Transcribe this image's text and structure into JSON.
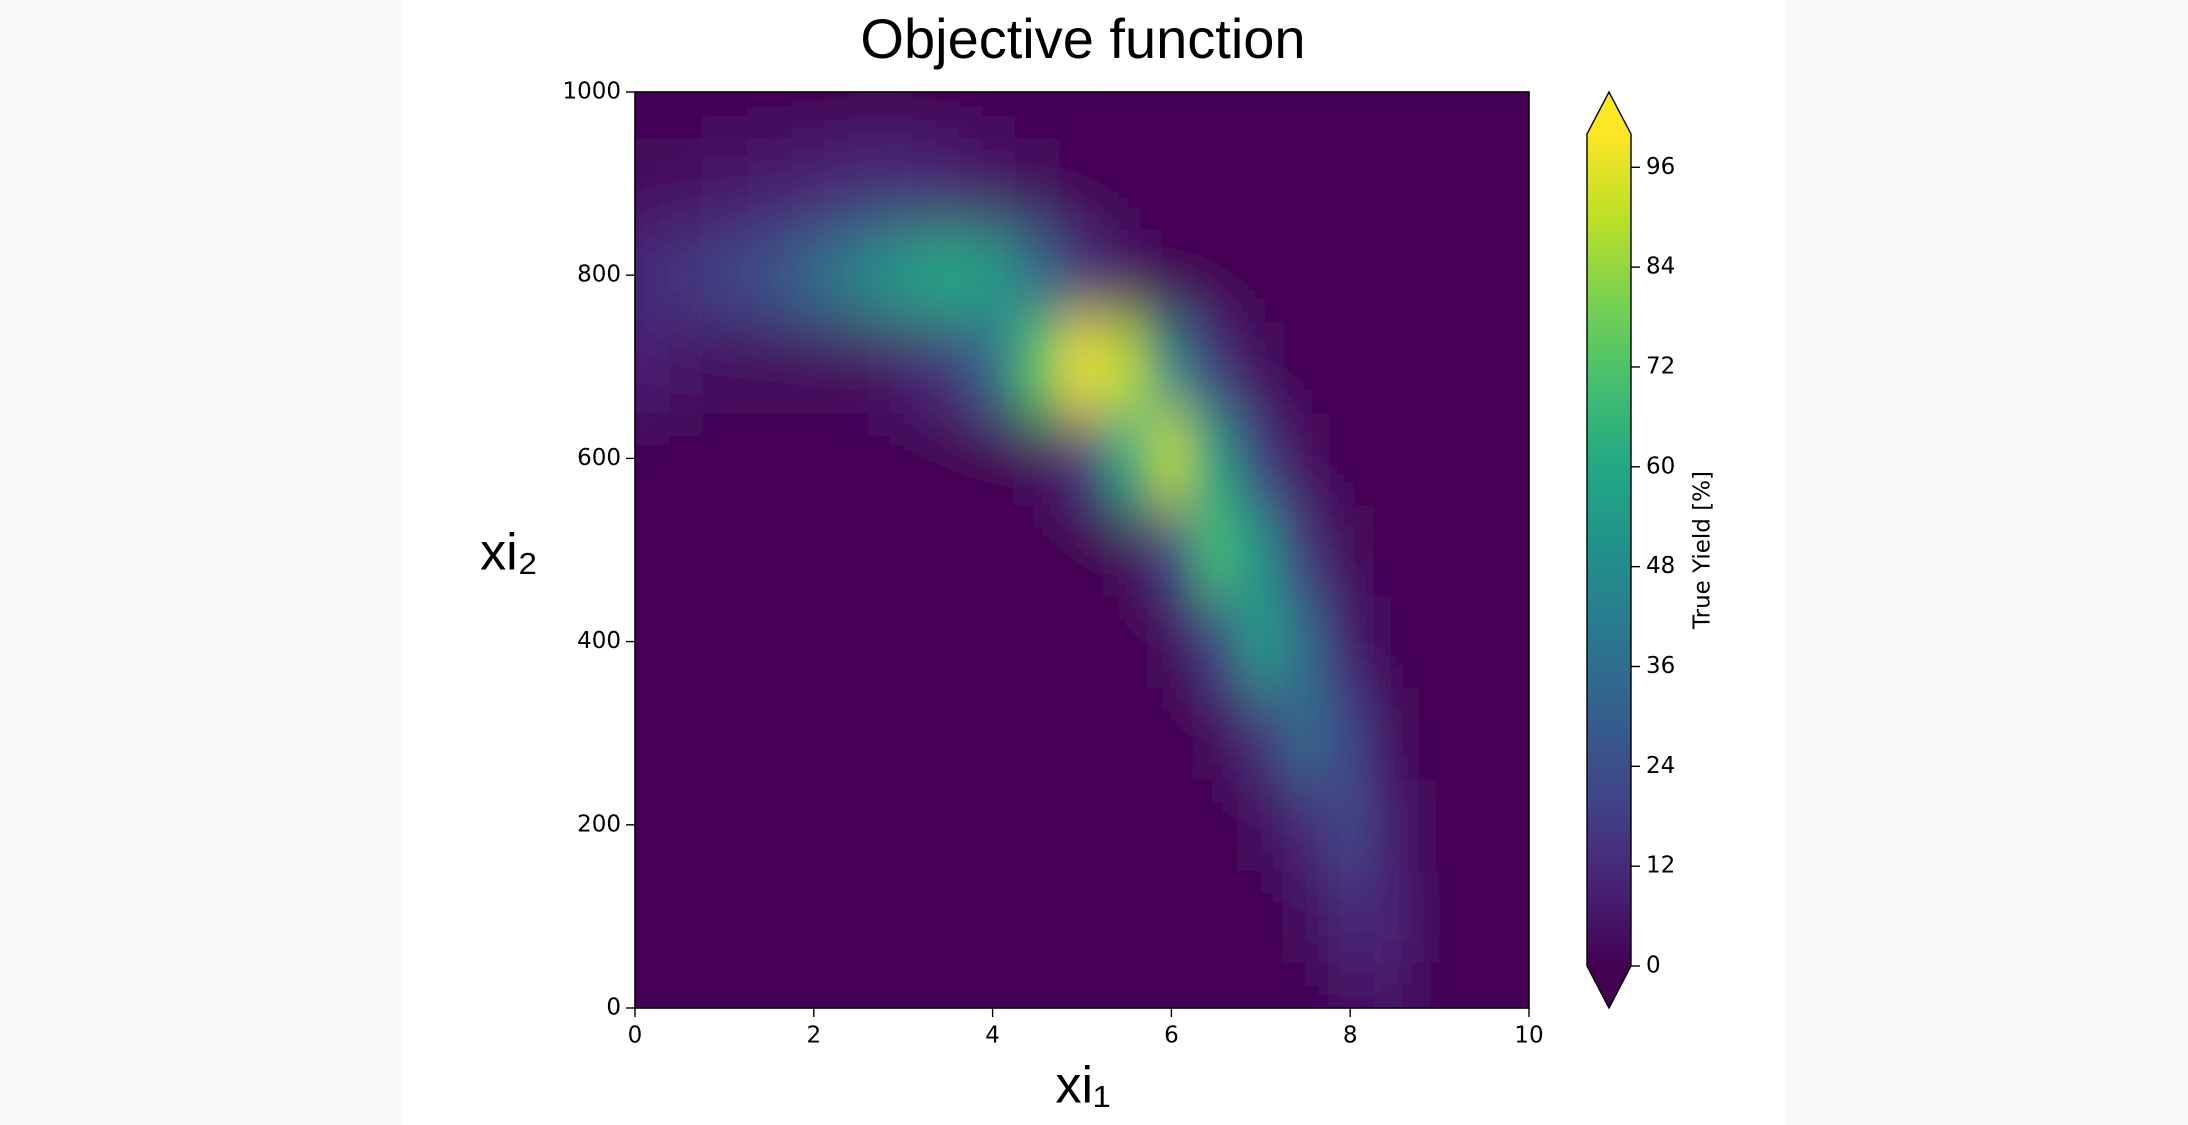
{
  "chart_data": {
    "type": "contourf",
    "title": "Objective function",
    "xlabel": "xi₁",
    "ylabel": "xi₂",
    "x": [
      0,
      0.5,
      1,
      1.5,
      2,
      2.5,
      3,
      3.5,
      4,
      4.5,
      5,
      5.5,
      6,
      6.5,
      7,
      7.5,
      8,
      8.5,
      9,
      9.5,
      10
    ],
    "y": [
      0,
      100,
      200,
      300,
      400,
      500,
      600,
      700,
      800,
      900,
      1000
    ],
    "z": [
      [
        0,
        0,
        0,
        0,
        0,
        0,
        0,
        0,
        0,
        0,
        0,
        0,
        0,
        0,
        0,
        0,
        4,
        6,
        1,
        0,
        0
      ],
      [
        0,
        0,
        0,
        0,
        0,
        0,
        0,
        0,
        0,
        0,
        0,
        0,
        0,
        0,
        0,
        3,
        12,
        10,
        1,
        0,
        0
      ],
      [
        0,
        0,
        0,
        0,
        0,
        0,
        0,
        0,
        0,
        0,
        0,
        0,
        0,
        0,
        3,
        12,
        22,
        8,
        0,
        0,
        0
      ],
      [
        0,
        0,
        0,
        0,
        0,
        0,
        0,
        0,
        0,
        0,
        0,
        0,
        0,
        3,
        15,
        35,
        20,
        3,
        0,
        0,
        0
      ],
      [
        0,
        0,
        0,
        0,
        0,
        0,
        0,
        0,
        0,
        0,
        0,
        0,
        3,
        20,
        55,
        35,
        8,
        1,
        0,
        0,
        0
      ],
      [
        0,
        0,
        0,
        0,
        0,
        0,
        0,
        0,
        0,
        0,
        0,
        2,
        20,
        70,
        50,
        15,
        2,
        0,
        0,
        0,
        0
      ],
      [
        0,
        0,
        0,
        0,
        0,
        0,
        0,
        0,
        1,
        3,
        15,
        60,
        90,
        55,
        18,
        4,
        0,
        0,
        0,
        0,
        0
      ],
      [
        10,
        6,
        3,
        3,
        3,
        4,
        8,
        15,
        35,
        75,
        98,
        90,
        45,
        15,
        3,
        0,
        0,
        0,
        0,
        0,
        0
      ],
      [
        12,
        15,
        20,
        25,
        35,
        45,
        55,
        60,
        55,
        35,
        15,
        5,
        1,
        0,
        0,
        0,
        0,
        0,
        0,
        0,
        0
      ],
      [
        3,
        4,
        6,
        8,
        10,
        12,
        12,
        10,
        6,
        3,
        1,
        0,
        0,
        0,
        0,
        0,
        0,
        0,
        0,
        0,
        0
      ],
      [
        0,
        0,
        0,
        0,
        0,
        0,
        0,
        0,
        0,
        0,
        0,
        0,
        0,
        0,
        0,
        0,
        0,
        0,
        0,
        0,
        0
      ]
    ],
    "xlim": [
      0,
      10
    ],
    "ylim": [
      0,
      1000
    ],
    "xticks": [
      0,
      2,
      4,
      6,
      8,
      10
    ],
    "yticks": [
      0,
      200,
      400,
      600,
      800,
      1000
    ],
    "colormap": "viridis",
    "colorbar": {
      "label": "True Yield [%]",
      "lim": [
        0,
        100
      ],
      "ticks": [
        0,
        12,
        24,
        36,
        48,
        60,
        72,
        84,
        96
      ],
      "extend": "both"
    }
  }
}
